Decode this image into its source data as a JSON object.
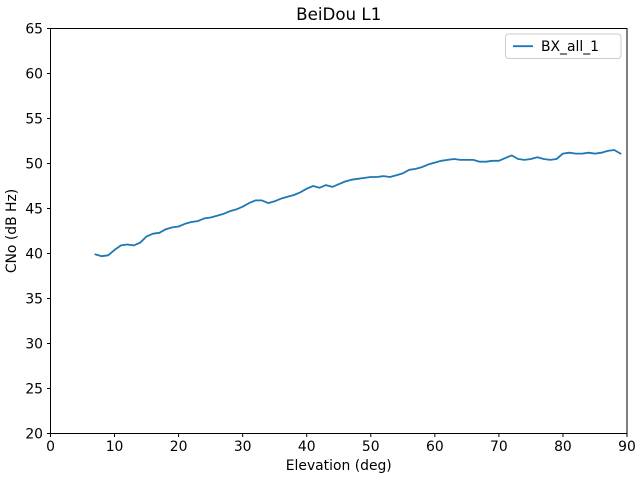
{
  "figure": {
    "title": "BeiDou L1"
  },
  "chart_data": {
    "type": "line",
    "title": "BeiDou L1",
    "xlabel": "Elevation (deg)",
    "ylabel": "CNo (dB Hz)",
    "xlim": [
      0,
      90
    ],
    "ylim": [
      20,
      65
    ],
    "xticks": [
      0,
      10,
      20,
      30,
      40,
      50,
      60,
      70,
      80,
      90
    ],
    "yticks": [
      20,
      25,
      30,
      35,
      40,
      45,
      50,
      55,
      60,
      65
    ],
    "grid": false,
    "legend": {
      "position": "upper right",
      "entries": [
        "BX_all_1"
      ]
    },
    "x": [
      7,
      8,
      9,
      10,
      11,
      12,
      13,
      14,
      15,
      16,
      17,
      18,
      19,
      20,
      21,
      22,
      23,
      24,
      25,
      26,
      27,
      28,
      29,
      30,
      31,
      32,
      33,
      34,
      35,
      36,
      37,
      38,
      39,
      40,
      41,
      42,
      43,
      44,
      45,
      46,
      47,
      48,
      49,
      50,
      51,
      52,
      53,
      54,
      55,
      56,
      57,
      58,
      59,
      60,
      61,
      62,
      63,
      64,
      65,
      66,
      67,
      68,
      69,
      70,
      71,
      72,
      73,
      74,
      75,
      76,
      77,
      78,
      79,
      80,
      81,
      82,
      83,
      84,
      85,
      86,
      87,
      88,
      89
    ],
    "series": [
      {
        "name": "BX_all_1",
        "color": "#1f77b4",
        "values": [
          39.9,
          39.7,
          39.8,
          40.4,
          40.9,
          41.0,
          40.9,
          41.2,
          41.9,
          42.2,
          42.3,
          42.7,
          42.9,
          43.0,
          43.3,
          43.5,
          43.6,
          43.9,
          44.0,
          44.2,
          44.4,
          44.7,
          44.9,
          45.2,
          45.6,
          45.9,
          45.9,
          45.6,
          45.8,
          46.1,
          46.3,
          46.5,
          46.8,
          47.2,
          47.5,
          47.3,
          47.6,
          47.4,
          47.7,
          48.0,
          48.2,
          48.3,
          48.4,
          48.5,
          48.5,
          48.6,
          48.5,
          48.7,
          48.9,
          49.3,
          49.4,
          49.6,
          49.9,
          50.1,
          50.3,
          50.4,
          50.5,
          50.4,
          50.4,
          50.4,
          50.2,
          50.2,
          50.3,
          50.3,
          50.6,
          50.9,
          50.5,
          50.4,
          50.5,
          50.7,
          50.5,
          50.4,
          50.5,
          51.1,
          51.2,
          51.1,
          51.1,
          51.2,
          51.1,
          51.2,
          51.4,
          51.5,
          51.1
        ]
      }
    ],
    "colors": {
      "line": "#1f77b4",
      "spine": "#000000",
      "legend_border": "#cccccc",
      "background": "#ffffff"
    }
  }
}
